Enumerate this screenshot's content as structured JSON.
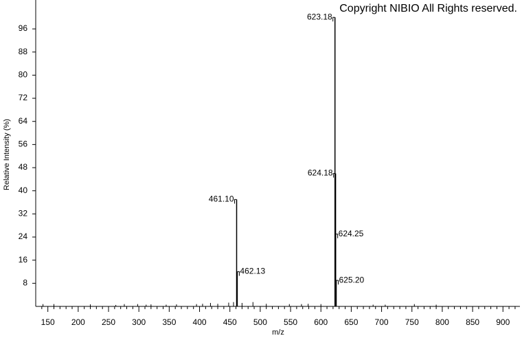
{
  "chart_data": {
    "type": "stem",
    "annotation": "Copyright NIBIO All Rights reserved.",
    "x_label": "m/z",
    "y_label": "Relative Intensity (%)",
    "x": [
      142,
      160,
      220,
      262,
      276,
      298,
      312,
      320,
      345,
      362,
      395,
      405,
      418,
      430,
      448,
      456,
      461.1,
      462.13,
      470,
      488,
      510,
      548,
      568,
      579,
      600,
      623.18,
      624.18,
      624.25,
      625.2,
      686,
      706,
      754,
      790
    ],
    "x_labels": [
      null,
      null,
      null,
      null,
      null,
      null,
      null,
      null,
      null,
      null,
      null,
      null,
      null,
      null,
      null,
      null,
      "461.10",
      "462.13",
      null,
      null,
      null,
      null,
      null,
      null,
      null,
      "623.18",
      "624.18",
      "624.25",
      "625.20",
      null,
      null,
      null,
      null
    ],
    "values": [
      0.8,
      0.8,
      0.7,
      0.5,
      0.8,
      0.8,
      0.6,
      0.7,
      0.6,
      0.7,
      0.8,
      0.9,
      1.2,
      0.9,
      1.3,
      1.5,
      37,
      12,
      1.2,
      1.5,
      0.9,
      0.8,
      0.8,
      0.9,
      0.8,
      100,
      46,
      25,
      9,
      0.6,
      0.6,
      0.8,
      0.6
    ],
    "color": "#000000",
    "xlim": [
      130,
      928
    ],
    "ylim": [
      0,
      106
    ],
    "xticks": [
      150,
      200,
      250,
      300,
      350,
      400,
      450,
      500,
      550,
      600,
      650,
      700,
      750,
      800,
      850,
      900
    ],
    "xminorticks": [
      140,
      160,
      170,
      180,
      190,
      210,
      220,
      230,
      240,
      260,
      270,
      280,
      290,
      310,
      320,
      330,
      340,
      360,
      370,
      380,
      390,
      410,
      420,
      430,
      440,
      460,
      470,
      480,
      490,
      510,
      520,
      530,
      540,
      560,
      570,
      580,
      590,
      610,
      620,
      630,
      640,
      660,
      670,
      680,
      690,
      710,
      720,
      730,
      740,
      760,
      770,
      780,
      790,
      810,
      820,
      830,
      840,
      860,
      870,
      880,
      890,
      910,
      920
    ],
    "yticks": [
      8,
      16,
      24,
      32,
      40,
      48,
      56,
      64,
      72,
      80,
      88,
      96
    ]
  }
}
